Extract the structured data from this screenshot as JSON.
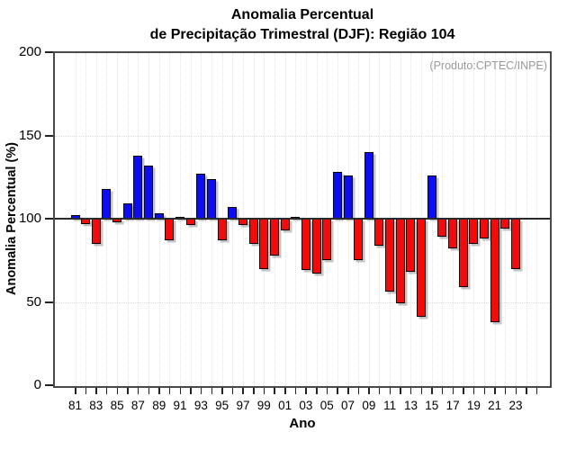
{
  "title": {
    "line1": "Anomalia Percentual",
    "line2": "de Precipitação Trimestral (DJF): Região 104"
  },
  "annotation": "(Produto:CPTEC/INPE)",
  "chart_data": {
    "type": "bar",
    "title": "Anomalia Percentual de Precipitação Trimestral (DJF): Região 104",
    "xlabel": "Ano",
    "ylabel": "Anomalia Percentual (%)",
    "ylim": [
      0,
      200
    ],
    "yticks": [
      0,
      50,
      100,
      150,
      200
    ],
    "baseline": 100,
    "grid": true,
    "x_tick_labels": [
      "81",
      "83",
      "85",
      "87",
      "89",
      "91",
      "93",
      "95",
      "97",
      "99",
      "01",
      "03",
      "05",
      "07",
      "09",
      "11",
      "13",
      "15",
      "17",
      "19",
      "21",
      "23"
    ],
    "years": [
      1981,
      1982,
      1983,
      1984,
      1985,
      1986,
      1987,
      1988,
      1989,
      1990,
      1991,
      1992,
      1993,
      1994,
      1995,
      1996,
      1997,
      1998,
      1999,
      2000,
      2001,
      2002,
      2003,
      2004,
      2005,
      2006,
      2007,
      2008,
      2009,
      2010,
      2011,
      2012,
      2013,
      2014,
      2015,
      2016,
      2017,
      2018,
      2019,
      2020,
      2021,
      2022,
      2023
    ],
    "values": [
      102,
      97,
      85,
      118,
      98,
      109,
      138,
      132,
      103,
      87,
      101,
      96,
      127,
      124,
      87,
      107,
      96,
      85,
      70,
      78,
      93,
      100.5,
      69,
      67,
      75,
      128,
      126,
      75,
      140,
      84,
      56,
      49,
      68,
      41,
      126,
      89,
      82,
      59,
      85,
      88,
      38,
      94,
      70
    ],
    "colors": {
      "above_baseline": "#0d0df2",
      "below_baseline": "#f20b0b",
      "bar_outline": "#000000",
      "frame": "#4a4a4a",
      "grid": "#e2e2e2",
      "annotation_text": "#9a9a9a"
    }
  }
}
